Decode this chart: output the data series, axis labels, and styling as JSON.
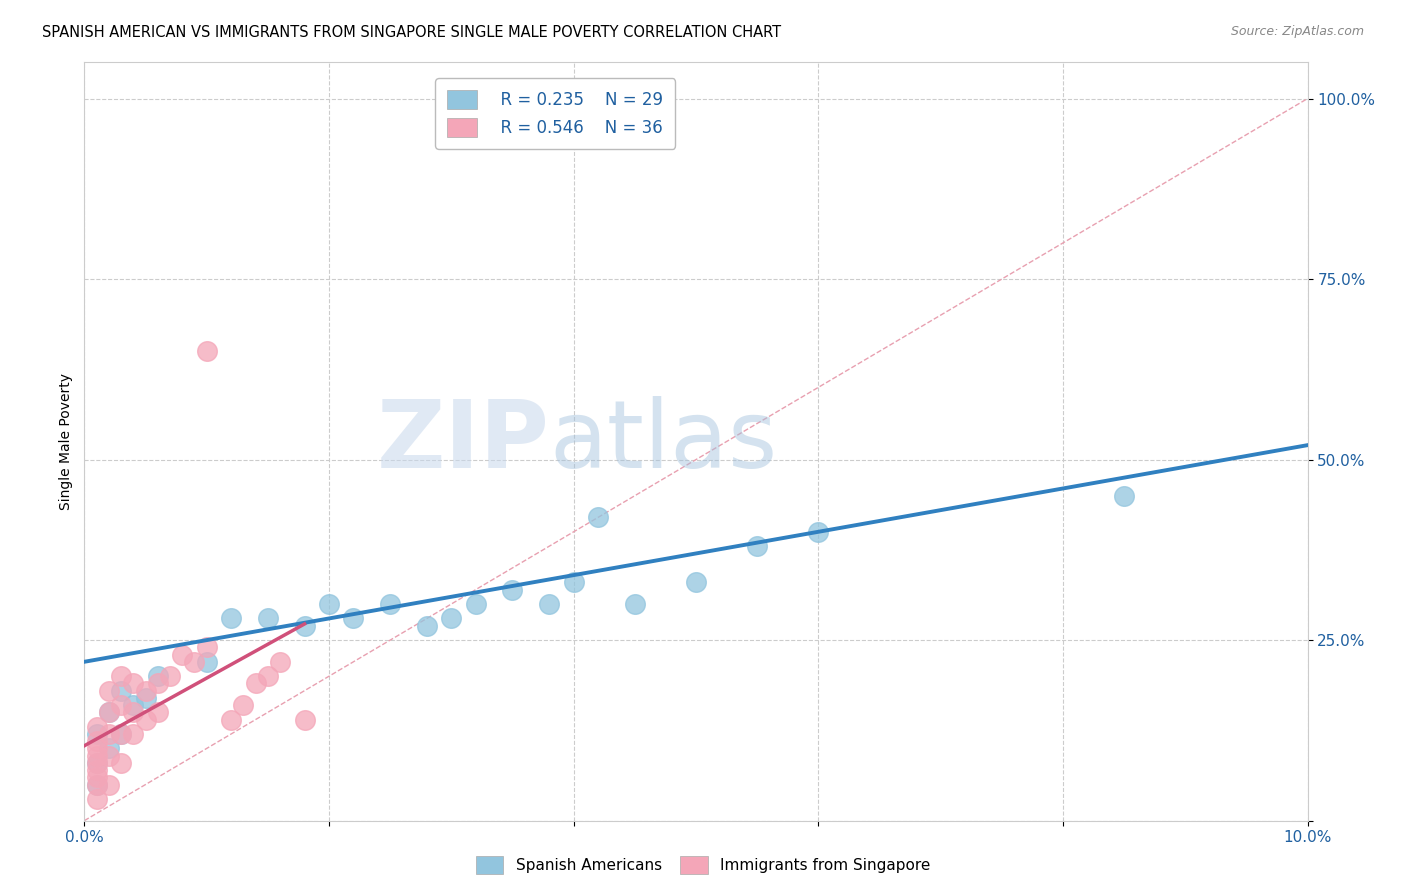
{
  "title": "SPANISH AMERICAN VS IMMIGRANTS FROM SINGAPORE SINGLE MALE POVERTY CORRELATION CHART",
  "source": "Source: ZipAtlas.com",
  "ylabel": "Single Male Poverty",
  "xlim": [
    0.0,
    0.1
  ],
  "ylim": [
    0.0,
    1.05
  ],
  "yticks": [
    0.0,
    0.25,
    0.5,
    0.75,
    1.0
  ],
  "ytick_labels": [
    "",
    "25.0%",
    "50.0%",
    "75.0%",
    "100.0%"
  ],
  "xticks": [
    0.0,
    0.02,
    0.04,
    0.06,
    0.08,
    0.1
  ],
  "xtick_labels": [
    "0.0%",
    "",
    "",
    "",
    "",
    "10.0%"
  ],
  "blue_label": "Spanish Americans",
  "pink_label": "Immigrants from Singapore",
  "blue_R": "R = 0.235",
  "blue_N": "N = 29",
  "pink_R": "R = 0.546",
  "pink_N": "N = 36",
  "blue_color": "#92C5DE",
  "pink_color": "#F4A6B8",
  "blue_line_color": "#3080C0",
  "pink_line_color": "#D0507A",
  "blue_x": [
    0.001,
    0.001,
    0.001,
    0.002,
    0.002,
    0.003,
    0.003,
    0.004,
    0.005,
    0.006,
    0.01,
    0.012,
    0.015,
    0.018,
    0.02,
    0.022,
    0.025,
    0.028,
    0.03,
    0.032,
    0.035,
    0.038,
    0.04,
    0.042,
    0.045,
    0.05,
    0.055,
    0.06,
    0.085
  ],
  "blue_y": [
    0.05,
    0.08,
    0.12,
    0.1,
    0.15,
    0.12,
    0.18,
    0.16,
    0.17,
    0.2,
    0.22,
    0.28,
    0.28,
    0.27,
    0.3,
    0.28,
    0.3,
    0.27,
    0.28,
    0.3,
    0.32,
    0.3,
    0.33,
    0.42,
    0.3,
    0.33,
    0.38,
    0.4,
    0.45
  ],
  "pink_x": [
    0.001,
    0.001,
    0.001,
    0.001,
    0.001,
    0.001,
    0.001,
    0.001,
    0.001,
    0.002,
    0.002,
    0.002,
    0.002,
    0.002,
    0.003,
    0.003,
    0.003,
    0.003,
    0.004,
    0.004,
    0.004,
    0.005,
    0.005,
    0.006,
    0.006,
    0.007,
    0.008,
    0.009,
    0.01,
    0.01,
    0.012,
    0.013,
    0.014,
    0.015,
    0.016,
    0.018
  ],
  "pink_y": [
    0.03,
    0.05,
    0.06,
    0.07,
    0.08,
    0.09,
    0.1,
    0.11,
    0.13,
    0.05,
    0.09,
    0.12,
    0.15,
    0.18,
    0.08,
    0.12,
    0.16,
    0.2,
    0.12,
    0.15,
    0.19,
    0.14,
    0.18,
    0.15,
    0.19,
    0.2,
    0.23,
    0.22,
    0.24,
    0.65,
    0.14,
    0.16,
    0.19,
    0.2,
    0.22,
    0.14
  ],
  "blue_trendline_x": [
    0.0,
    0.1
  ],
  "blue_trendline_y": [
    0.22,
    0.52
  ],
  "pink_trendline_x_start": 0.0,
  "pink_trendline_x_end": 0.018,
  "diag_color": "#E8A0B0",
  "watermark_zip": "ZIP",
  "watermark_atlas": "atlas",
  "background_color": "#ffffff",
  "title_fontsize": 10.5,
  "tick_fontsize": 11,
  "legend_fontsize": 12
}
